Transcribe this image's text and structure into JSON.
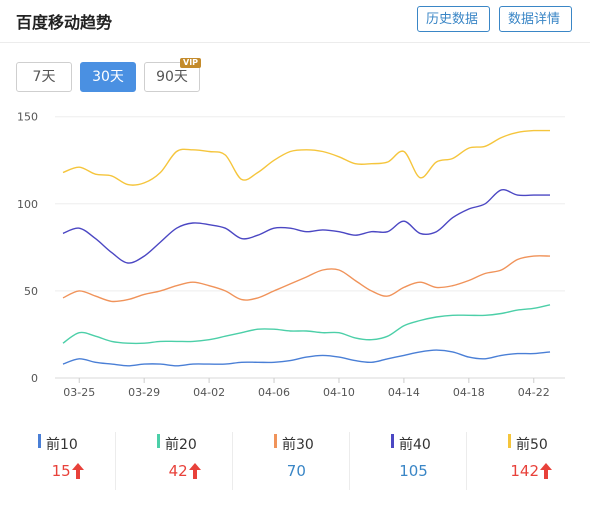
{
  "header": {
    "title": "百度移动趋势",
    "history_label": "历史数据",
    "detail_label": "数据详情"
  },
  "range": {
    "options": [
      "7天",
      "30天",
      "90天"
    ],
    "selected": "30天",
    "vip_badge": "VIP"
  },
  "chart_data": {
    "type": "line",
    "x": [
      "03-24",
      "03-25",
      "03-26",
      "03-27",
      "03-28",
      "03-29",
      "03-30",
      "03-31",
      "04-01",
      "04-02",
      "04-03",
      "04-04",
      "04-05",
      "04-06",
      "04-07",
      "04-08",
      "04-09",
      "04-10",
      "04-11",
      "04-12",
      "04-13",
      "04-14",
      "04-15",
      "04-16",
      "04-17",
      "04-18",
      "04-19",
      "04-20",
      "04-21",
      "04-22",
      "04-23"
    ],
    "x_tick_labels": [
      "03-25",
      "03-29",
      "04-02",
      "04-06",
      "04-10",
      "04-14",
      "04-18",
      "04-22"
    ],
    "y_ticks": [
      0,
      50,
      100,
      150
    ],
    "ylim": [
      0,
      155
    ],
    "grid": true,
    "series": [
      {
        "name": "前10",
        "color": "#4a7fd6",
        "values": [
          8,
          11,
          9,
          8,
          7,
          8,
          8,
          7,
          8,
          8,
          8,
          9,
          9,
          9,
          10,
          12,
          13,
          12,
          10,
          9,
          11,
          13,
          15,
          16,
          15,
          12,
          11,
          13,
          14,
          14,
          15
        ]
      },
      {
        "name": "前20",
        "color": "#4ccfa8",
        "values": [
          20,
          26,
          24,
          21,
          20,
          20,
          21,
          21,
          21,
          22,
          24,
          26,
          28,
          28,
          27,
          27,
          26,
          26,
          23,
          22,
          24,
          30,
          33,
          35,
          36,
          36,
          36,
          37,
          39,
          40,
          42
        ]
      },
      {
        "name": "前30",
        "color": "#f0935a",
        "values": [
          46,
          50,
          47,
          44,
          45,
          48,
          50,
          53,
          55,
          53,
          50,
          45,
          46,
          50,
          54,
          58,
          62,
          62,
          56,
          50,
          47,
          52,
          55,
          52,
          53,
          56,
          60,
          62,
          68,
          70,
          70
        ]
      },
      {
        "name": "前40",
        "color": "#4b47c3",
        "values": [
          83,
          86,
          80,
          72,
          66,
          70,
          78,
          86,
          89,
          88,
          86,
          80,
          82,
          86,
          86,
          84,
          85,
          84,
          82,
          84,
          84,
          90,
          83,
          84,
          92,
          97,
          100,
          108,
          105,
          105,
          105
        ]
      },
      {
        "name": "前50",
        "color": "#f5c53c",
        "values": [
          118,
          121,
          117,
          116,
          111,
          112,
          118,
          130,
          131,
          130,
          128,
          114,
          118,
          125,
          130,
          131,
          130,
          127,
          123,
          123,
          124,
          130,
          115,
          124,
          126,
          132,
          133,
          138,
          141,
          142,
          142
        ]
      }
    ]
  },
  "summary": [
    {
      "name": "前10",
      "value": "15",
      "trend": "up",
      "color": "#4a7fd6"
    },
    {
      "name": "前20",
      "value": "42",
      "trend": "up",
      "color": "#4ccfa8"
    },
    {
      "name": "前30",
      "value": "70",
      "trend": "none",
      "color": "#f0935a"
    },
    {
      "name": "前40",
      "value": "105",
      "trend": "none",
      "color": "#4b47c3"
    },
    {
      "name": "前50",
      "value": "142",
      "trend": "up",
      "color": "#f5c53c"
    }
  ],
  "colors": {
    "accent": "#4a90e2",
    "up": "#e8413a",
    "neutral_value": "#3a86c6"
  }
}
